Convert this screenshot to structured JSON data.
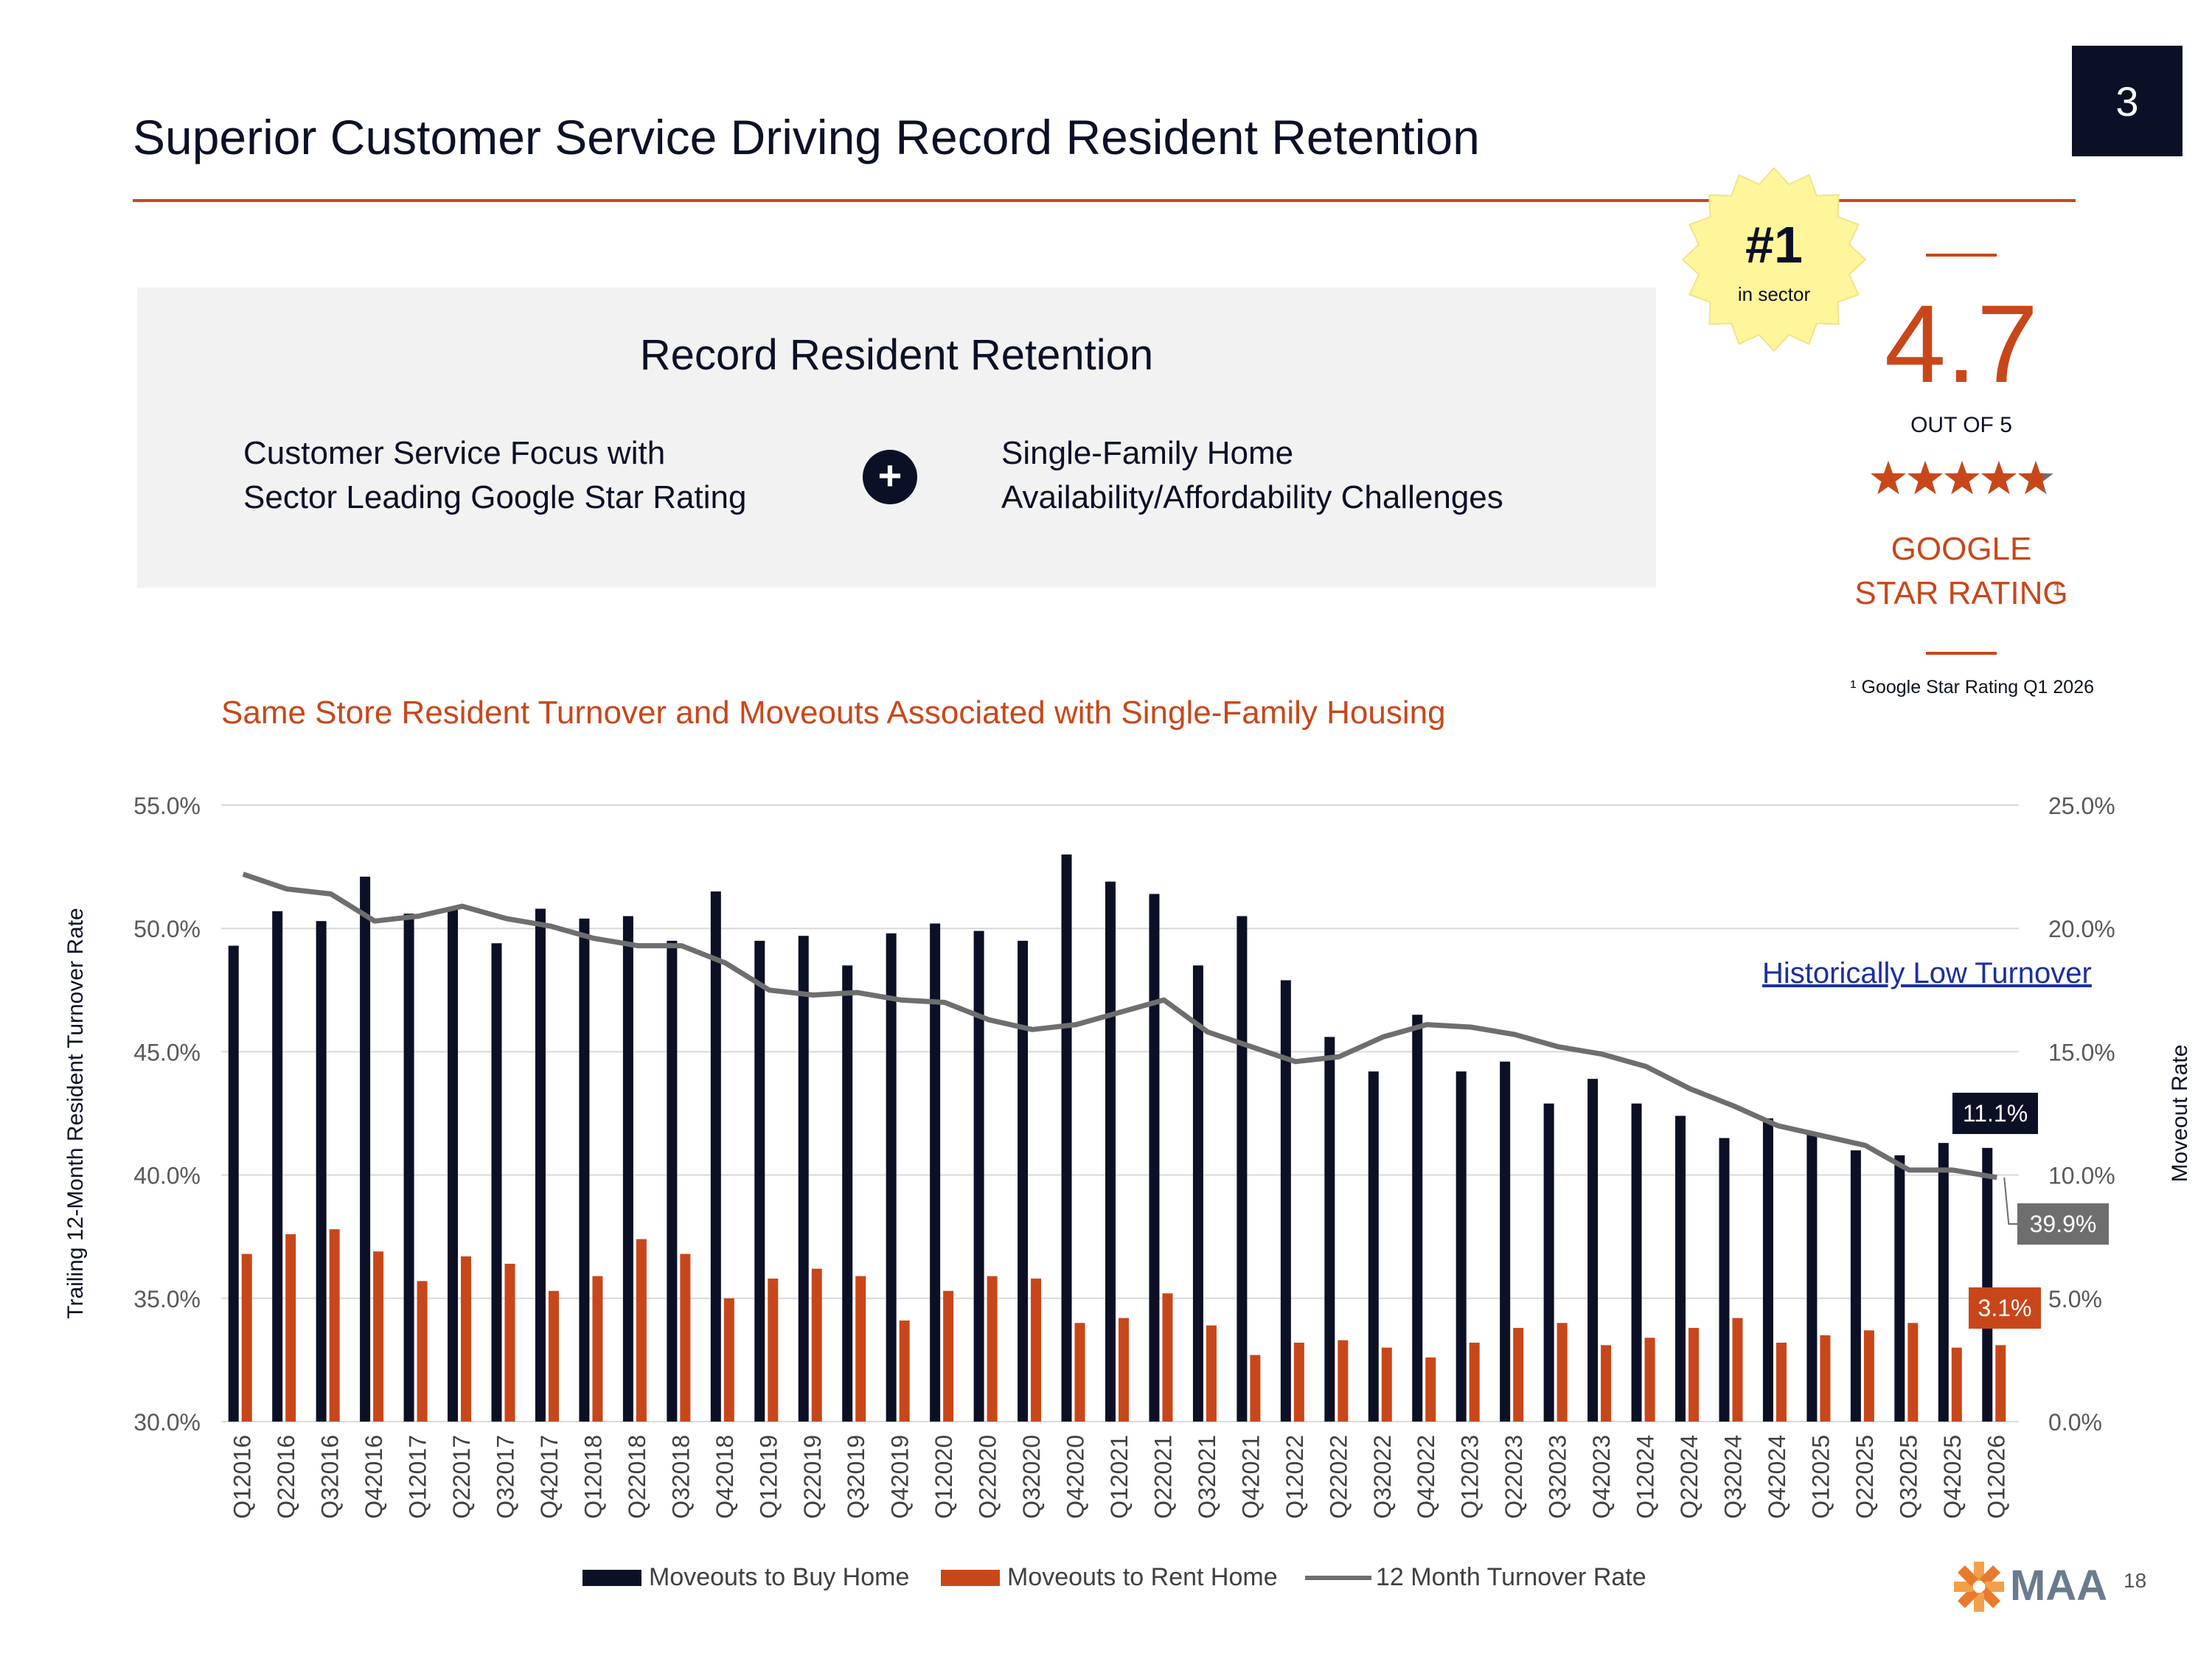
{
  "section_number": "3",
  "title": "Superior Customer Service Driving Record Resident Retention",
  "panel": {
    "heading": "Record Resident Retention",
    "left_line1": "Customer Service Focus with",
    "left_line2": "Sector Leading Google Star Rating",
    "plus": "+",
    "right_line1": "Single-Family Home",
    "right_line2": "Availability/Affordability Challenges"
  },
  "badge": {
    "rank": "#1",
    "sub": "in sector",
    "color": "#fff59a"
  },
  "rating": {
    "value": "4.7",
    "out_of": "OUT OF 5",
    "stars": 4.7,
    "label_line1": "GOOGLE",
    "label_line2": "STAR RATING",
    "sup": "1",
    "footnote": "¹ Google Star Rating Q1 2026"
  },
  "annotation": "Historically Low Turnover",
  "colors": {
    "navy": "#0b1026",
    "orange": "#c8471a",
    "gray_line": "#6e6e6e"
  },
  "chart_data": {
    "type": "bar",
    "title": "Same Store Resident Turnover and Moveouts Associated with Single-Family Housing",
    "ylabel_left": "Trailing 12-Month Resident Turnover Rate",
    "ylabel_right": "Moveout Rate",
    "ylim_left": [
      30,
      55
    ],
    "ylim_right": [
      0,
      25
    ],
    "yticks_left": [
      "55.0%",
      "50.0%",
      "45.0%",
      "40.0%",
      "35.0%",
      "30.0%"
    ],
    "yticks_right": [
      "25.0%",
      "20.0%",
      "15.0%",
      "10.0%",
      "5.0%",
      "0.0%"
    ],
    "grid": true,
    "legend_position": "bottom",
    "categories": [
      "Q12016",
      "Q22016",
      "Q32016",
      "Q42016",
      "Q12017",
      "Q22017",
      "Q32017",
      "Q42017",
      "Q12018",
      "Q22018",
      "Q32018",
      "Q42018",
      "Q12019",
      "Q22019",
      "Q32019",
      "Q42019",
      "Q12020",
      "Q22020",
      "Q32020",
      "Q42020",
      "Q12021",
      "Q22021",
      "Q32021",
      "Q42021",
      "Q12022",
      "Q22022",
      "Q32022",
      "Q42022",
      "Q12023",
      "Q22023",
      "Q32023",
      "Q42023",
      "Q12024",
      "Q22024",
      "Q32024",
      "Q42024",
      "Q12025",
      "Q22025",
      "Q32025",
      "Q42025",
      "Q12026"
    ],
    "series": [
      {
        "name": "Moveouts to Buy Home",
        "axis": "right",
        "kind": "bar",
        "color": "#0b1026",
        "values": [
          19.3,
          20.7,
          20.3,
          22.1,
          20.6,
          20.8,
          19.4,
          20.8,
          20.4,
          20.5,
          19.5,
          21.5,
          19.5,
          19.7,
          18.5,
          19.8,
          20.2,
          19.9,
          19.5,
          23.0,
          21.9,
          21.4,
          18.5,
          20.5,
          17.9,
          15.6,
          14.2,
          16.5,
          14.2,
          14.6,
          12.9,
          13.9,
          12.9,
          12.4,
          11.5,
          12.3,
          11.7,
          11.0,
          10.8,
          11.3,
          11.1
        ]
      },
      {
        "name": "Moveouts to Rent Home",
        "axis": "right",
        "kind": "bar",
        "color": "#c8471a",
        "values": [
          6.8,
          7.6,
          7.8,
          6.9,
          5.7,
          6.7,
          6.4,
          5.3,
          5.9,
          7.4,
          6.8,
          5.0,
          5.8,
          6.2,
          5.9,
          4.1,
          5.3,
          5.9,
          5.8,
          4.0,
          4.2,
          5.2,
          3.9,
          2.7,
          3.2,
          3.3,
          3.0,
          2.6,
          3.2,
          3.8,
          4.0,
          3.1,
          3.4,
          3.8,
          4.2,
          3.2,
          3.5,
          3.7,
          4.0,
          3.0,
          3.1
        ]
      },
      {
        "name": "12 Month Turnover Rate",
        "axis": "left",
        "kind": "line",
        "color": "#6e6e6e",
        "values": [
          52.2,
          51.6,
          51.4,
          50.3,
          50.5,
          50.9,
          50.4,
          50.1,
          49.6,
          49.3,
          49.3,
          48.6,
          47.5,
          47.3,
          47.4,
          47.1,
          47.0,
          46.3,
          45.9,
          46.1,
          46.6,
          47.1,
          45.8,
          45.2,
          44.6,
          44.8,
          45.6,
          46.1,
          46.0,
          45.7,
          45.2,
          44.9,
          44.4,
          43.5,
          42.8,
          42.0,
          41.6,
          41.2,
          40.2,
          40.2,
          39.9
        ]
      }
    ],
    "data_labels": {
      "buy_last": "11.1%",
      "rate_last": "39.9%",
      "rent_last": "3.1%"
    }
  },
  "logo_text": "MAA",
  "page_number": "18"
}
